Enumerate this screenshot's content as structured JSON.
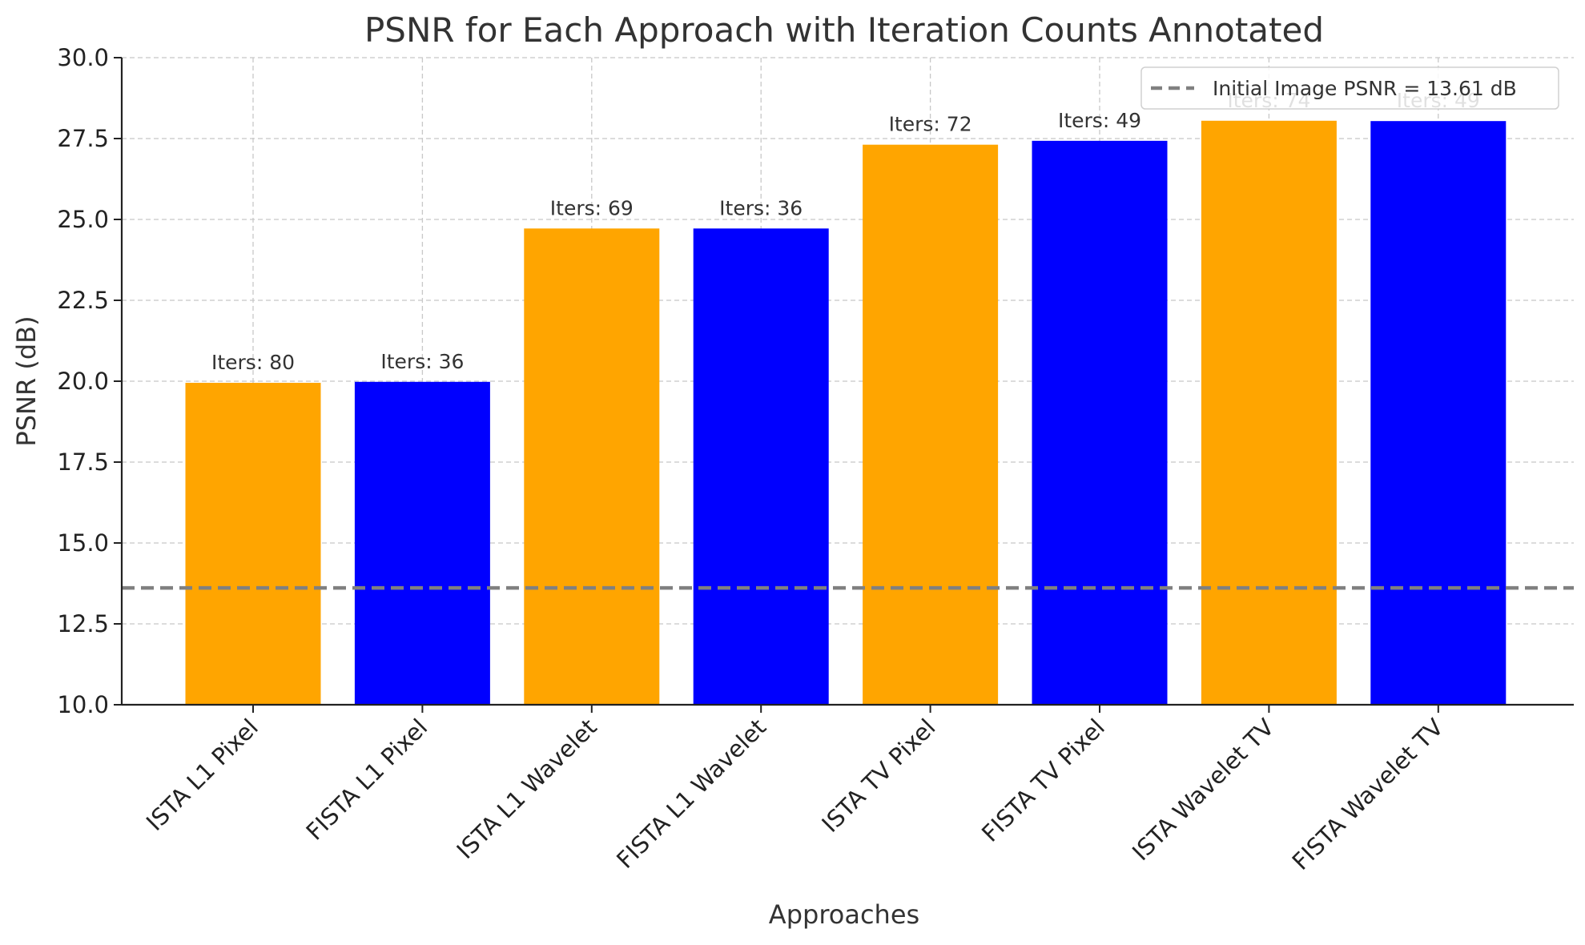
{
  "chart_data": {
    "type": "bar",
    "title": "PSNR for Each Approach with Iteration Counts Annotated",
    "xlabel": "Approaches",
    "ylabel": "PSNR (dB)",
    "ylim": [
      10.0,
      30.0
    ],
    "yticks": [
      "10.0",
      "12.5",
      "15.0",
      "17.5",
      "20.0",
      "22.5",
      "25.0",
      "27.5",
      "30.0"
    ],
    "grid": true,
    "categories": [
      "ISTA L1 Pixel",
      "FISTA L1 Pixel",
      "ISTA L1 Wavelet",
      "FISTA L1 Wavelet",
      "ISTA TV Pixel",
      "FISTA TV Pixel",
      "ISTA Wavelet TV",
      "FISTA Wavelet TV"
    ],
    "values": [
      19.95,
      19.98,
      24.72,
      24.72,
      27.31,
      27.43,
      28.05,
      28.04
    ],
    "colors": [
      "#ffa500",
      "#0000ff",
      "#ffa500",
      "#0000ff",
      "#ffa500",
      "#0000ff",
      "#ffa500",
      "#0000ff"
    ],
    "annotations": [
      "Iters: 80",
      "Iters: 36",
      "Iters: 69",
      "Iters: 36",
      "Iters: 72",
      "Iters: 49",
      "Iters: 74",
      "Iters: 49"
    ],
    "reference_line": {
      "value": 13.61,
      "label": "Initial Image PSNR = 13.61 dB",
      "color": "#808080",
      "style": "dashed"
    },
    "legend_position": "top-right"
  }
}
